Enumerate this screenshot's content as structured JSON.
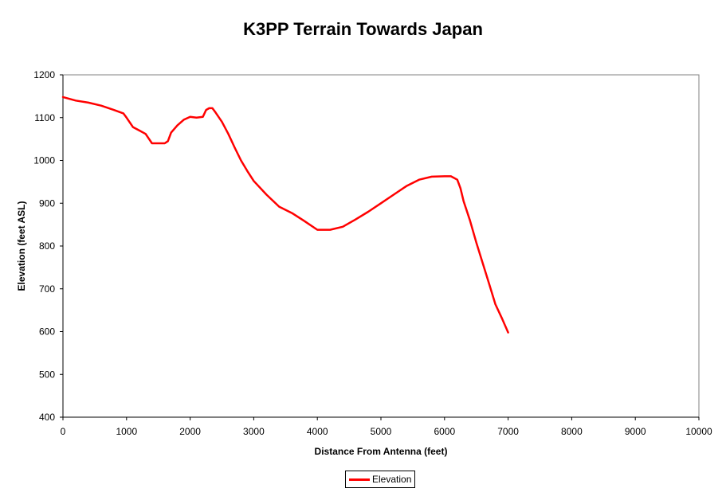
{
  "chart_data": {
    "type": "line",
    "title": "K3PP Terrain Towards Japan",
    "xlabel": "Distance From Antenna (feet)",
    "ylabel": "Elevation (feet ASL)",
    "xlim": [
      0,
      10000
    ],
    "ylim": [
      400,
      1200
    ],
    "x_ticks": [
      "0",
      "1000",
      "2000",
      "3000",
      "4000",
      "5000",
      "6000",
      "7000",
      "8000",
      "9000",
      "10000"
    ],
    "y_ticks": [
      "400",
      "500",
      "600",
      "700",
      "800",
      "900",
      "1000",
      "1100",
      "1200"
    ],
    "grid": true,
    "legend_position": "bottom-center",
    "series": [
      {
        "name": "Elevation",
        "color": "#ff0000",
        "x": [
          0,
          200,
          400,
          600,
          800,
          950,
          1000,
          1100,
          1200,
          1300,
          1400,
          1500,
          1600,
          1650,
          1700,
          1800,
          1900,
          2000,
          2100,
          2200,
          2250,
          2300,
          2350,
          2400,
          2500,
          2600,
          2700,
          2800,
          2900,
          3000,
          3200,
          3400,
          3600,
          3800,
          4000,
          4200,
          4400,
          4600,
          4800,
          5000,
          5200,
          5400,
          5600,
          5800,
          6000,
          6100,
          6200,
          6250,
          6300,
          6400,
          6500,
          6600,
          6700,
          6800,
          6900,
          7000
        ],
        "values": [
          1148,
          1140,
          1135,
          1128,
          1118,
          1110,
          1100,
          1078,
          1070,
          1062,
          1040,
          1040,
          1040,
          1045,
          1065,
          1082,
          1095,
          1102,
          1100,
          1102,
          1118,
          1122,
          1122,
          1112,
          1090,
          1062,
          1030,
          1000,
          975,
          952,
          920,
          892,
          877,
          858,
          838,
          838,
          845,
          862,
          880,
          900,
          920,
          940,
          955,
          962,
          963,
          963,
          955,
          935,
          905,
          860,
          808,
          760,
          712,
          664,
          632,
          598
        ]
      }
    ]
  }
}
